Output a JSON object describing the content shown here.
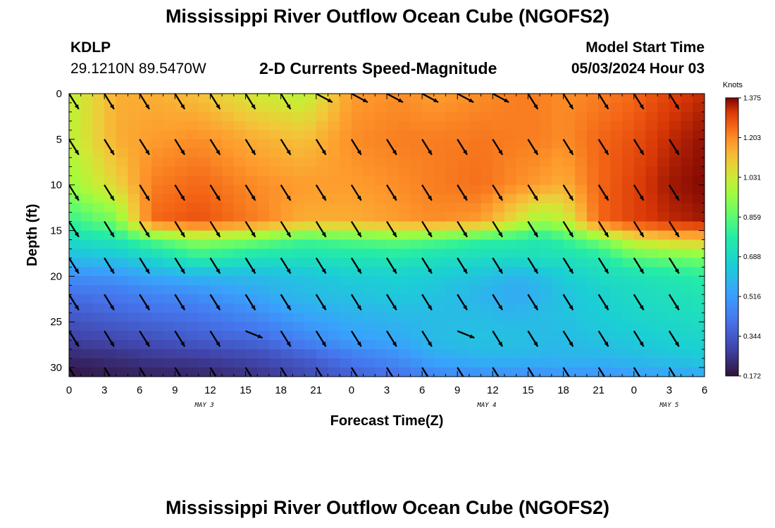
{
  "header": {
    "title": "Mississippi River Outflow Ocean Cube (NGOFS2)",
    "station": "KDLP",
    "coords": "29.1210N  89.5470W",
    "plot_title": "2-D Currents Speed-Magnitude",
    "start_label": "Model Start Time",
    "start_value": "05/03/2024 Hour 03",
    "footer_title": "Mississippi River Outflow Ocean Cube (NGOFS2)"
  },
  "chart_data": {
    "type": "heatmap",
    "title": "2-D Currents Speed-Magnitude",
    "xlabel": "Forecast Time(Z)",
    "ylabel": "Depth (ft)",
    "x_range_hours": [
      0,
      54
    ],
    "y_range_ft": [
      0,
      31
    ],
    "x_tick_labels": [
      "0",
      "3",
      "6",
      "9",
      "12",
      "15",
      "18",
      "21",
      "0",
      "3",
      "6",
      "9",
      "12",
      "15",
      "18",
      "21",
      "0",
      "3",
      "6"
    ],
    "y_tick_labels": [
      "0",
      "5",
      "10",
      "15",
      "20",
      "25",
      "30"
    ],
    "date_labels": [
      {
        "text": "MAY 3",
        "hour": 11.5
      },
      {
        "text": "MAY 4",
        "hour": 35.5
      },
      {
        "text": "MAY 5",
        "hour": 51
      }
    ],
    "colorbar": {
      "unit": "Knots",
      "ticks": [
        "1.375",
        "1.203",
        "1.031",
        "0.859",
        "0.688",
        "0.516",
        "0.344",
        "0.172"
      ],
      "min": 0.172,
      "max": 1.375
    },
    "arrow_hours": [
      0,
      3,
      6,
      9,
      12,
      15,
      18,
      21,
      24,
      27,
      30,
      33,
      36,
      39,
      42,
      45,
      48,
      51
    ],
    "arrow_depths_ft": [
      0,
      5,
      10,
      14,
      18,
      22,
      26,
      30
    ],
    "speed_grid_rows_note": "rows = depth levels 0..31 ft, columns = forecast hours 0..54, values in knots",
    "speed_depths_ft": [
      0,
      5,
      10,
      14,
      16,
      18,
      20,
      22,
      24,
      27,
      29,
      31
    ],
    "speed_hours": [
      0,
      4,
      7,
      11,
      16,
      20,
      24,
      28,
      31,
      35,
      38,
      40,
      42,
      45,
      48,
      51,
      54
    ],
    "speed": [
      [
        1.0,
        1.15,
        1.15,
        1.12,
        1.03,
        1.0,
        1.18,
        1.2,
        1.18,
        1.2,
        1.22,
        1.22,
        1.2,
        1.22,
        1.25,
        1.3,
        1.33
      ],
      [
        1.0,
        1.15,
        1.18,
        1.2,
        1.15,
        1.12,
        1.2,
        1.22,
        1.22,
        1.23,
        1.22,
        1.22,
        1.2,
        1.25,
        1.28,
        1.33,
        1.36
      ],
      [
        0.95,
        1.08,
        1.22,
        1.25,
        1.2,
        1.18,
        1.18,
        1.2,
        1.22,
        1.24,
        1.2,
        1.18,
        1.15,
        1.25,
        1.3,
        1.35,
        1.37
      ],
      [
        0.8,
        0.9,
        1.25,
        1.28,
        1.22,
        1.15,
        1.15,
        1.18,
        1.2,
        1.18,
        1.05,
        0.95,
        1.0,
        1.25,
        1.3,
        1.33,
        1.35
      ],
      [
        0.7,
        0.75,
        0.85,
        0.95,
        0.9,
        0.82,
        0.85,
        0.88,
        0.85,
        0.8,
        0.78,
        0.75,
        0.8,
        0.9,
        1.05,
        1.1,
        1.12
      ],
      [
        0.6,
        0.62,
        0.68,
        0.78,
        0.72,
        0.72,
        0.74,
        0.75,
        0.72,
        0.7,
        0.7,
        0.72,
        0.72,
        0.75,
        0.85,
        0.88,
        0.9
      ],
      [
        0.48,
        0.5,
        0.55,
        0.58,
        0.6,
        0.62,
        0.65,
        0.66,
        0.65,
        0.62,
        0.58,
        0.6,
        0.65,
        0.7,
        0.72,
        0.75,
        0.78
      ],
      [
        0.4,
        0.42,
        0.45,
        0.48,
        0.55,
        0.6,
        0.62,
        0.64,
        0.62,
        0.58,
        0.55,
        0.58,
        0.62,
        0.66,
        0.7,
        0.72,
        0.74
      ],
      [
        0.35,
        0.38,
        0.4,
        0.42,
        0.48,
        0.55,
        0.58,
        0.6,
        0.6,
        0.6,
        0.58,
        0.6,
        0.62,
        0.65,
        0.68,
        0.7,
        0.72
      ],
      [
        0.28,
        0.3,
        0.32,
        0.35,
        0.38,
        0.45,
        0.52,
        0.55,
        0.6,
        0.62,
        0.62,
        0.6,
        0.6,
        0.62,
        0.64,
        0.66,
        0.68
      ],
      [
        0.22,
        0.24,
        0.26,
        0.27,
        0.3,
        0.35,
        0.42,
        0.48,
        0.55,
        0.58,
        0.58,
        0.58,
        0.58,
        0.58,
        0.6,
        0.62,
        0.64
      ],
      [
        0.18,
        0.2,
        0.21,
        0.22,
        0.25,
        0.3,
        0.36,
        0.4,
        0.45,
        0.48,
        0.48,
        0.48,
        0.5,
        0.5,
        0.52,
        0.54,
        0.55
      ]
    ]
  }
}
